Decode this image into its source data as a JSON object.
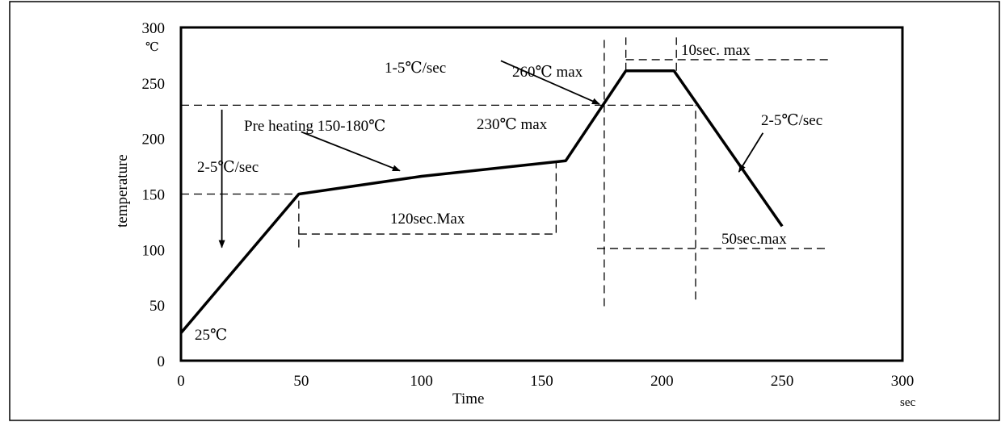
{
  "chart_data": {
    "type": "line",
    "title": "",
    "xlabel": "Time",
    "x_unit": "sec",
    "ylabel": "temperature",
    "y_unit": "℃",
    "xlim": [
      0,
      300
    ],
    "ylim": [
      0,
      300
    ],
    "x_ticks": [
      0,
      50,
      100,
      150,
      200,
      250,
      300
    ],
    "y_ticks": [
      0,
      50,
      100,
      150,
      200,
      250,
      300
    ],
    "grid": false,
    "legend": "none",
    "series": [
      {
        "x": [
          0,
          49,
          100,
          160,
          185,
          205,
          250
        ],
        "y": [
          25,
          150,
          166,
          180,
          261,
          261,
          121
        ]
      }
    ],
    "annotations": {
      "start_temp": "25℃",
      "ramp_up_rate": "2-5℃/sec",
      "preheat": "Pre heating  150-180℃",
      "preheat_time": "120sec.Max",
      "ramp_rate_2": "1-5℃/sec",
      "reflow_temp": "230℃  max",
      "peak_temp": "260℃  max",
      "peak_time": "10sec. max",
      "cool_rate": "2-5℃/sec",
      "above_230_time": "50sec.max"
    },
    "guides": {
      "y150": {
        "y": 150,
        "x_from": 0,
        "x_to": 49
      },
      "y230": {
        "y": 230,
        "x_from": 0,
        "x_to": 213
      },
      "y270": {
        "y": 271,
        "x_from": 185,
        "x_to": 270
      },
      "y_preheat": {
        "y": 114,
        "x_from": 49,
        "x_to": 156
      },
      "y_50sec": {
        "y": 101,
        "x_from": 173,
        "x_to": 268
      },
      "v_preheat_start": {
        "x": 49,
        "y_from": 102,
        "y_to": 150
      },
      "v_preheat_end": {
        "x": 156,
        "y_from": 115,
        "y_to": 180
      },
      "v_230_left": {
        "x": 176,
        "y_from": 49,
        "y_to": 291
      },
      "v_peak_left": {
        "x": 185,
        "y_from": 261,
        "y_to": 291
      },
      "v_peak_right": {
        "x": 206,
        "y_from": 261,
        "y_to": 291
      },
      "v_230_right": {
        "x": 214,
        "y_from": 55,
        "y_to": 230
      }
    },
    "arrows": [
      {
        "from": [
          17,
          226
        ],
        "to": [
          17,
          102
        ]
      },
      {
        "from": [
          50,
          206
        ],
        "to": [
          91,
          171
        ]
      },
      {
        "from": [
          133,
          270
        ],
        "to": [
          174,
          231
        ]
      },
      {
        "from": [
          242,
          205
        ],
        "to": [
          232,
          170
        ]
      }
    ]
  }
}
